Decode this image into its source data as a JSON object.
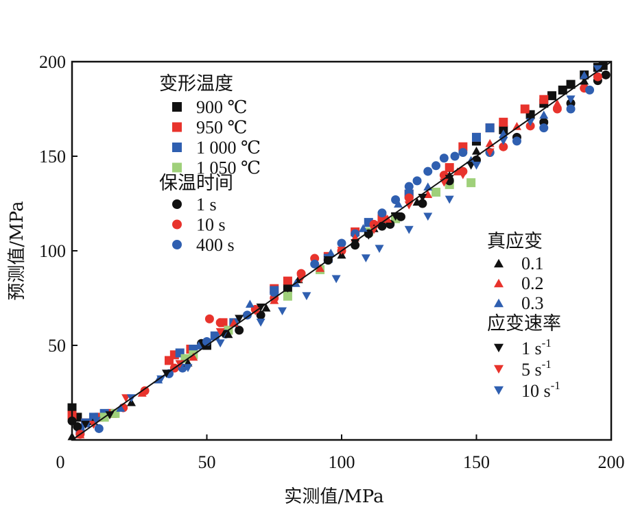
{
  "chart_data": {
    "type": "scatter",
    "xlabel": "实测值/MPa",
    "ylabel": "预测值/MPa",
    "xlim": [
      0,
      200
    ],
    "ylim": [
      0,
      200
    ],
    "x_ticks": [
      "0",
      "50",
      "100",
      "150",
      "200"
    ],
    "y_ticks": [
      "50",
      "100",
      "150",
      "200"
    ],
    "grid": false,
    "reference_line": "y = x",
    "legend_groups": [
      {
        "title": "变形温度",
        "marker": "square",
        "entries": [
          {
            "label": "900 ℃",
            "color": "#111111"
          },
          {
            "label": "950 ℃",
            "color": "#e8332c"
          },
          {
            "label": "1 000 ℃",
            "color": "#2f5fb0"
          },
          {
            "label": "1 050 ℃",
            "color": "#9fd07a"
          }
        ]
      },
      {
        "title": "保温时间",
        "marker": "circle",
        "entries": [
          {
            "label": "1 s",
            "color": "#111111"
          },
          {
            "label": "10 s",
            "color": "#e8332c"
          },
          {
            "label": "400 s",
            "color": "#2f5fb0"
          }
        ]
      },
      {
        "title": "真应变",
        "marker": "triangle-up",
        "entries": [
          {
            "label": "0.1",
            "color": "#111111"
          },
          {
            "label": "0.2",
            "color": "#e8332c"
          },
          {
            "label": "0.3",
            "color": "#2f5fb0"
          }
        ]
      },
      {
        "title": "应变速率",
        "marker": "triangle-down",
        "entries": [
          {
            "label": "1 s",
            "sup": "-1",
            "color": "#111111"
          },
          {
            "label": "5 s",
            "sup": "-1",
            "color": "#e8332c"
          },
          {
            "label": "10 s",
            "sup": "-1",
            "color": "#2f5fb0"
          }
        ]
      }
    ],
    "series": [
      {
        "marker": "square",
        "color": "#111111",
        "points": [
          [
            0,
            17
          ],
          [
            0,
            14
          ],
          [
            2,
            12
          ],
          [
            50,
            50
          ],
          [
            80,
            80
          ],
          [
            120,
            118
          ],
          [
            150,
            158
          ],
          [
            160,
            164
          ],
          [
            170,
            172
          ],
          [
            175,
            178
          ],
          [
            178,
            182
          ],
          [
            182,
            185
          ],
          [
            185,
            188
          ],
          [
            190,
            193
          ],
          [
            195,
            197
          ],
          [
            197,
            198
          ]
        ]
      },
      {
        "marker": "square",
        "color": "#e8332c",
        "points": [
          [
            0,
            13
          ],
          [
            5,
            9
          ],
          [
            10,
            12
          ],
          [
            15,
            14
          ],
          [
            36,
            42
          ],
          [
            38,
            45
          ],
          [
            44,
            48
          ],
          [
            56,
            62
          ],
          [
            75,
            80
          ],
          [
            80,
            84
          ],
          [
            95,
            97
          ],
          [
            105,
            110
          ],
          [
            115,
            117
          ],
          [
            125,
            130
          ],
          [
            140,
            144
          ],
          [
            145,
            155
          ],
          [
            150,
            160
          ],
          [
            155,
            165
          ],
          [
            160,
            168
          ],
          [
            168,
            175
          ],
          [
            175,
            180
          ]
        ]
      },
      {
        "marker": "square",
        "color": "#2f5fb0",
        "points": [
          [
            3,
            5
          ],
          [
            5,
            9
          ],
          [
            8,
            12
          ],
          [
            12,
            14
          ],
          [
            40,
            46
          ],
          [
            45,
            48
          ],
          [
            53,
            55
          ],
          [
            60,
            62
          ],
          [
            75,
            79
          ],
          [
            95,
            96
          ],
          [
            110,
            115
          ],
          [
            125,
            130
          ],
          [
            150,
            160
          ],
          [
            155,
            165
          ]
        ]
      },
      {
        "marker": "square",
        "color": "#9fd07a",
        "points": [
          [
            12,
            12
          ],
          [
            16,
            14
          ],
          [
            42,
            43
          ],
          [
            45,
            45
          ],
          [
            58,
            58
          ],
          [
            80,
            76
          ],
          [
            92,
            90
          ],
          [
            110,
            110
          ],
          [
            120,
            117
          ],
          [
            135,
            131
          ],
          [
            140,
            135
          ],
          [
            148,
            136
          ]
        ]
      },
      {
        "marker": "circle",
        "color": "#111111",
        "points": [
          [
            0,
            10
          ],
          [
            2,
            7
          ],
          [
            48,
            51
          ],
          [
            62,
            58
          ],
          [
            70,
            66
          ],
          [
            95,
            95
          ],
          [
            105,
            103
          ],
          [
            110,
            109
          ],
          [
            115,
            113
          ],
          [
            118,
            114
          ],
          [
            122,
            118
          ],
          [
            130,
            125
          ],
          [
            140,
            137
          ],
          [
            150,
            148
          ],
          [
            155,
            152
          ],
          [
            165,
            160
          ],
          [
            175,
            168
          ],
          [
            185,
            178
          ],
          [
            195,
            190
          ],
          [
            198,
            193
          ]
        ]
      },
      {
        "marker": "circle",
        "color": "#e8332c",
        "points": [
          [
            3,
            3
          ],
          [
            19,
            17
          ],
          [
            27,
            26
          ],
          [
            38,
            38
          ],
          [
            51,
            64
          ],
          [
            55,
            62
          ],
          [
            68,
            69
          ],
          [
            75,
            75
          ],
          [
            85,
            88
          ],
          [
            90,
            96
          ],
          [
            100,
            100
          ],
          [
            112,
            114
          ],
          [
            125,
            128
          ],
          [
            138,
            140
          ],
          [
            145,
            142
          ],
          [
            160,
            155
          ],
          [
            170,
            166
          ],
          [
            180,
            175
          ],
          [
            190,
            186
          ],
          [
            195,
            192
          ]
        ]
      },
      {
        "marker": "circle",
        "color": "#2f5fb0",
        "points": [
          [
            10,
            6
          ],
          [
            36,
            35
          ],
          [
            41,
            38
          ],
          [
            50,
            52
          ],
          [
            57,
            56
          ],
          [
            65,
            66
          ],
          [
            75,
            78
          ],
          [
            90,
            93
          ],
          [
            100,
            104
          ],
          [
            105,
            109
          ],
          [
            115,
            120
          ],
          [
            120,
            127
          ],
          [
            125,
            134
          ],
          [
            128,
            137
          ],
          [
            132,
            142
          ],
          [
            135,
            145
          ],
          [
            138,
            149
          ],
          [
            142,
            150
          ],
          [
            145,
            152
          ],
          [
            155,
            152
          ],
          [
            165,
            158
          ],
          [
            175,
            165
          ],
          [
            185,
            175
          ],
          [
            192,
            185
          ]
        ]
      },
      {
        "marker": "triangle-up",
        "color": "#111111",
        "points": [
          [
            0,
            2
          ],
          [
            8,
            10
          ],
          [
            22,
            20
          ],
          [
            43,
            41
          ],
          [
            58,
            56
          ],
          [
            72,
            70
          ],
          [
            84,
            85
          ],
          [
            100,
            98
          ],
          [
            112,
            112
          ],
          [
            128,
            126
          ],
          [
            140,
            140
          ],
          [
            150,
            153
          ],
          [
            170,
            172
          ],
          [
            190,
            190
          ]
        ]
      },
      {
        "marker": "triangle-up",
        "color": "#e8332c",
        "points": [
          [
            3,
            3
          ],
          [
            26,
            25
          ],
          [
            45,
            44
          ],
          [
            60,
            62
          ],
          [
            75,
            74
          ],
          [
            92,
            91
          ],
          [
            105,
            107
          ],
          [
            117,
            117
          ],
          [
            132,
            130
          ],
          [
            143,
            142
          ],
          [
            155,
            157
          ],
          [
            165,
            166
          ],
          [
            180,
            178
          ]
        ]
      },
      {
        "marker": "triangle-up",
        "color": "#2f5fb0",
        "points": [
          [
            18,
            17
          ],
          [
            32,
            32
          ],
          [
            47,
            50
          ],
          [
            66,
            72
          ],
          [
            83,
            83
          ],
          [
            96,
            99
          ],
          [
            108,
            112
          ],
          [
            121,
            125
          ],
          [
            132,
            134
          ],
          [
            148,
            148
          ],
          [
            160,
            162
          ],
          [
            175,
            172
          ],
          [
            190,
            193
          ]
        ]
      },
      {
        "marker": "triangle-down",
        "color": "#111111",
        "points": [
          [
            5,
            8
          ],
          [
            14,
            13
          ],
          [
            35,
            35
          ],
          [
            40,
            40
          ],
          [
            56,
            56
          ],
          [
            62,
            64
          ],
          [
            70,
            70
          ],
          [
            80,
            80
          ],
          [
            95,
            95
          ],
          [
            105,
            104
          ],
          [
            110,
            108
          ],
          [
            120,
            118
          ],
          [
            130,
            128
          ],
          [
            140,
            138
          ],
          [
            148,
            145
          ]
        ]
      },
      {
        "marker": "triangle-down",
        "color": "#e8332c",
        "points": [
          [
            8,
            8
          ],
          [
            20,
            22
          ],
          [
            40,
            40
          ],
          [
            55,
            57
          ],
          [
            68,
            68
          ],
          [
            85,
            85
          ],
          [
            100,
            100
          ],
          [
            112,
            111
          ],
          [
            125,
            124
          ],
          [
            138,
            136
          ],
          [
            145,
            140
          ],
          [
            155,
            152
          ]
        ]
      },
      {
        "marker": "triangle-down",
        "color": "#2f5fb0",
        "points": [
          [
            9,
            10
          ],
          [
            22,
            22
          ],
          [
            33,
            32
          ],
          [
            43,
            38
          ],
          [
            55,
            51
          ],
          [
            70,
            62
          ],
          [
            78,
            68
          ],
          [
            87,
            76
          ],
          [
            98,
            85
          ],
          [
            109,
            96
          ],
          [
            114,
            101
          ],
          [
            125,
            111
          ],
          [
            132,
            118
          ],
          [
            140,
            127
          ],
          [
            150,
            145
          ],
          [
            160,
            158
          ],
          [
            170,
            168
          ],
          [
            185,
            180
          ],
          [
            195,
            196
          ]
        ]
      }
    ]
  }
}
